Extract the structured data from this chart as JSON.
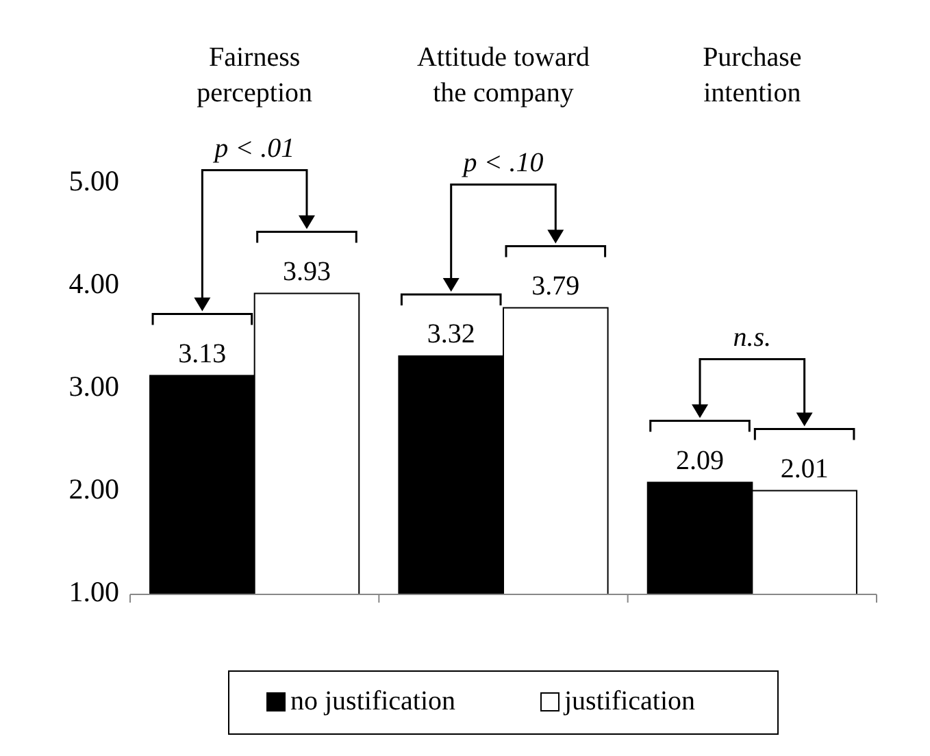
{
  "chart_data": {
    "type": "bar",
    "categories": [
      "Fairness perception",
      "Attitude toward the company",
      "Purchase intention"
    ],
    "series": [
      {
        "name": "no justification",
        "color": "#000000",
        "values": [
          3.13,
          3.32,
          2.09
        ]
      },
      {
        "name": "justification",
        "color": "#ffffff",
        "values": [
          3.93,
          3.79,
          2.01
        ]
      }
    ],
    "ylim": [
      1,
      5
    ],
    "yticks": [
      {
        "value": 1,
        "label": "1.00"
      },
      {
        "value": 2,
        "label": "2.00"
      },
      {
        "value": 3,
        "label": "3.00"
      },
      {
        "value": 4,
        "label": "4.00"
      },
      {
        "value": 5,
        "label": "5.00"
      }
    ],
    "data_labels": true,
    "legend": "bottom",
    "annotations": [
      "p < .01",
      "p < .10",
      "n.s."
    ]
  }
}
